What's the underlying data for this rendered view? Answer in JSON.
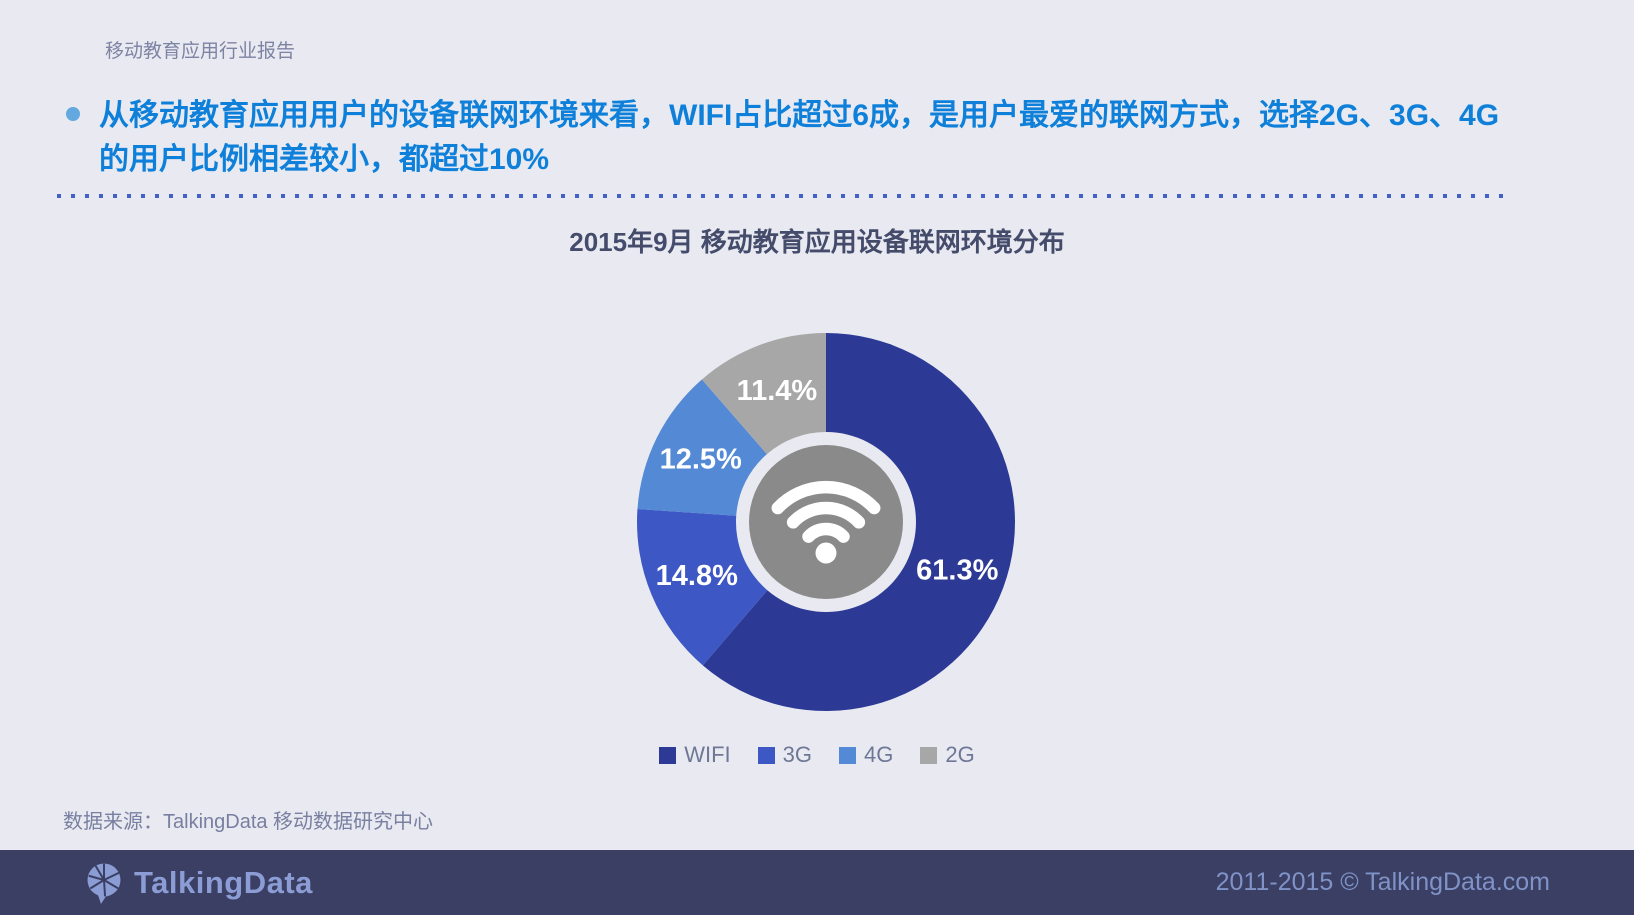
{
  "page": {
    "report_label": "移动教育应用行业报告",
    "insight_text": "从移动教育应用用户的设备联网环境来看，WIFI占比超过6成，是用户最爱的联网方式，选择2G、3G、4G的用户比例相差较小，都超过10%",
    "data_source": "数据来源：TalkingData 移动数据研究中心"
  },
  "footer": {
    "brand": "TalkingData",
    "copyright": "2011-2015 © TalkingData.com"
  },
  "chart_data": {
    "type": "pie",
    "subtype": "donut",
    "title": "2015年9月  移动教育应用设备联网环境分布",
    "categories": [
      "WIFI",
      "3G",
      "4G",
      "2G"
    ],
    "values": [
      61.3,
      14.8,
      12.5,
      11.4
    ],
    "data_labels": [
      "61.3%",
      "14.8%",
      "12.5%",
      "11.4%"
    ],
    "colors": [
      "#2C3A96",
      "#3D57C5",
      "#5489D6",
      "#A7A7A7"
    ],
    "label_color": "#FFFFFF",
    "start_angle": "top",
    "direction": "clockwise",
    "inner_radius_ratio": 0.48,
    "center_icon": "wifi",
    "center_circle_color": "#8A8A8A",
    "legend_position": "bottom"
  },
  "theme": {
    "background": "#E9EAF1",
    "accent_blue": "#0E80DA",
    "divider_blue": "#4161C4",
    "title_color": "#444B6B",
    "footer_background": "#3A3F63",
    "footer_text": "#8093C8"
  }
}
